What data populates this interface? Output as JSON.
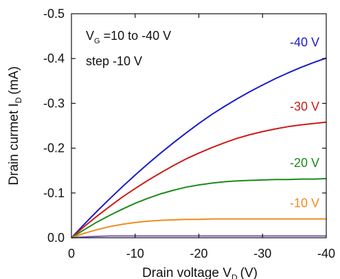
{
  "chart_data": {
    "type": "line",
    "title": "",
    "xlabel": "Drain voltage V",
    "xlabel_sub": "D",
    "xlabel_unit": "(V)",
    "ylabel": "Drain curmet I",
    "ylabel_sub": "D",
    "ylabel_unit": "(mA)",
    "xlim": [
      0,
      -40
    ],
    "ylim": [
      0.0,
      -0.5
    ],
    "x_ticks": [
      {
        "value": 0,
        "label": "0"
      },
      {
        "value": -10,
        "label": "-10"
      },
      {
        "value": -20,
        "label": "-20"
      },
      {
        "value": -30,
        "label": "-30"
      },
      {
        "value": -40,
        "label": "-40"
      }
    ],
    "y_ticks": [
      {
        "value": 0.0,
        "label": "0.0"
      },
      {
        "value": -0.1,
        "label": "-0.1"
      },
      {
        "value": -0.2,
        "label": "-0.2"
      },
      {
        "value": -0.3,
        "label": "-0.3"
      },
      {
        "value": -0.4,
        "label": "-0.4"
      },
      {
        "value": -0.5,
        "label": "-0.5"
      }
    ],
    "grid": false,
    "annotations": {
      "line1_prefix": "V",
      "line1_sub": "G",
      "line1_rest": " =10 to -40 V",
      "line2": "step -10 V"
    },
    "x": [
      0,
      -2,
      -4,
      -6,
      -8,
      -10,
      -12,
      -14,
      -16,
      -18,
      -20,
      -22,
      -24,
      -26,
      -28,
      -30,
      -32,
      -34,
      -36,
      -38,
      -40
    ],
    "series": [
      {
        "name": "-40 V",
        "color": "#1a1acc",
        "values": [
          0,
          -0.03,
          -0.059,
          -0.087,
          -0.114,
          -0.14,
          -0.165,
          -0.189,
          -0.212,
          -0.234,
          -0.255,
          -0.275,
          -0.293,
          -0.31,
          -0.326,
          -0.341,
          -0.355,
          -0.368,
          -0.38,
          -0.391,
          -0.401
        ]
      },
      {
        "name": "-30 V",
        "color": "#cc1a1a",
        "values": [
          0,
          -0.025,
          -0.048,
          -0.07,
          -0.091,
          -0.11,
          -0.128,
          -0.145,
          -0.161,
          -0.176,
          -0.189,
          -0.201,
          -0.212,
          -0.222,
          -0.23,
          -0.237,
          -0.243,
          -0.248,
          -0.252,
          -0.255,
          -0.258
        ]
      },
      {
        "name": "-20 V",
        "color": "#1a8a1a",
        "values": [
          0,
          -0.018,
          -0.035,
          -0.05,
          -0.064,
          -0.077,
          -0.088,
          -0.098,
          -0.106,
          -0.113,
          -0.118,
          -0.122,
          -0.125,
          -0.127,
          -0.128,
          -0.129,
          -0.13,
          -0.13,
          -0.131,
          -0.131,
          -0.132
        ]
      },
      {
        "name": "-10 V",
        "color": "#f08a1e",
        "values": [
          0,
          -0.01,
          -0.018,
          -0.025,
          -0.03,
          -0.034,
          -0.037,
          -0.039,
          -0.04,
          -0.041,
          -0.041,
          -0.042,
          -0.042,
          -0.042,
          -0.042,
          -0.042,
          -0.042,
          -0.042,
          -0.042,
          -0.042,
          -0.042
        ]
      },
      {
        "name": "",
        "color": "#7a5cb8",
        "values": [
          0,
          -0.002,
          -0.003,
          -0.004,
          -0.004,
          -0.004,
          -0.004,
          -0.004,
          -0.004,
          -0.004,
          -0.004,
          -0.004,
          -0.004,
          -0.004,
          -0.004,
          -0.004,
          -0.004,
          -0.004,
          -0.004,
          -0.004,
          -0.004
        ]
      }
    ]
  }
}
